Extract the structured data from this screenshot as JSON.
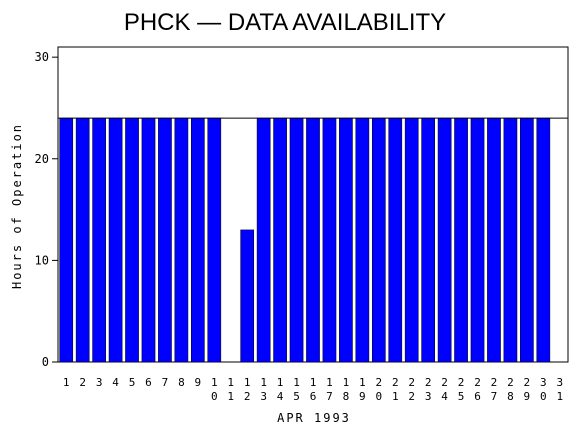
{
  "chart_data": {
    "type": "bar",
    "title": "PHCK — DATA AVAILABILITY",
    "x_label": "APR 1993",
    "y_label": "Hours of Operation",
    "categories": [
      "1",
      "2",
      "3",
      "4",
      "5",
      "6",
      "7",
      "8",
      "9",
      "10",
      "11",
      "12",
      "13",
      "14",
      "15",
      "16",
      "17",
      "18",
      "19",
      "20",
      "21",
      "22",
      "23",
      "24",
      "25",
      "26",
      "27",
      "28",
      "29",
      "30",
      "31"
    ],
    "values": [
      24,
      24,
      24,
      24,
      24,
      24,
      24,
      24,
      24,
      24,
      0,
      13,
      24,
      24,
      24,
      24,
      24,
      24,
      24,
      24,
      24,
      24,
      24,
      24,
      24,
      24,
      24,
      24,
      24,
      24,
      null
    ],
    "color": "#0000ff",
    "reference_line": 24,
    "ylim": [
      0,
      31
    ],
    "yticks": [
      0,
      10,
      20,
      30
    ]
  }
}
